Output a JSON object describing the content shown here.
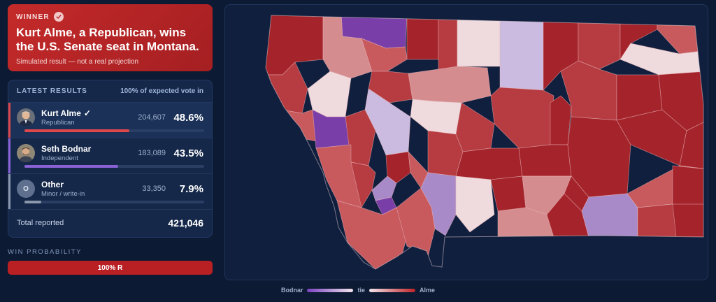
{
  "winner": {
    "badge": "WINNER",
    "headline": "Kurt Alme, a Republican, wins the U.S. Senate seat in Montana.",
    "sub": "Simulated result — not a real projection"
  },
  "results": {
    "title": "LATEST RESULTS",
    "reporting": "100% of expected vote in",
    "candidates": [
      {
        "name": "Kurt Alme",
        "winner_mark": "✓",
        "party": "Republican",
        "votes": "204,607",
        "share": "48.6%",
        "bar_fraction": 0.486,
        "color": "#e0474a"
      },
      {
        "name": "Seth Bodnar",
        "winner_mark": "",
        "party": "Independent",
        "votes": "183,089",
        "share": "43.5%",
        "bar_fraction": 0.435,
        "color": "#8a62d6"
      },
      {
        "name": "Other",
        "winner_mark": "",
        "party": "Minor / write-in",
        "votes": "33,350",
        "share": "7.9%",
        "bar_fraction": 0.079,
        "color": "#8b97ab",
        "avatar_letter": "O"
      }
    ],
    "total_label": "Total reported",
    "total_value": "421,046"
  },
  "win_probability": {
    "label": "WIN PROBABILITY",
    "bar_text": "100% R",
    "value_fraction": 1.0,
    "color": "#b82024"
  },
  "legend": {
    "left_label": "Bodnar",
    "middle_label": "tie",
    "right_label": "Alme",
    "left_color": "#7a42c2",
    "tie_color": "#f1e4ea",
    "right_color": "#bf2227"
  },
  "map": {
    "state": "Montana",
    "colors": {
      "strong_r": "#a5232a",
      "r": "#b63c41",
      "lean_r": "#c85a5e",
      "tilt_r": "#d58c8e",
      "tie": "#efdadd",
      "tilt_i": "#cbbbe0",
      "lean_i": "#a98ac9",
      "strong_i": "#7a3ea8"
    }
  }
}
